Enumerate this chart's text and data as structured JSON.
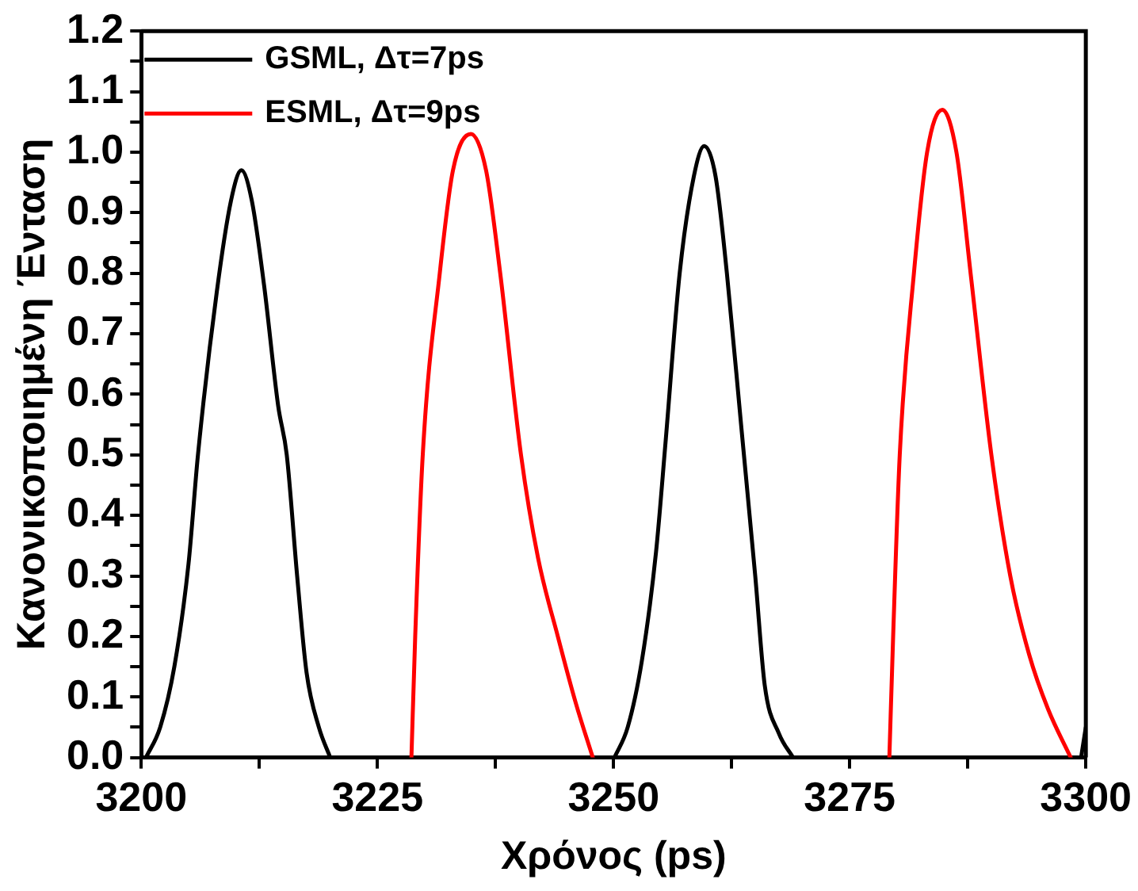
{
  "chart_data": {
    "type": "line",
    "xlabel": "Χρόνος (ps)",
    "ylabel": "Κανονικοποιημένη Ένταση",
    "xlim": [
      3200,
      3300
    ],
    "xticks": [
      3200,
      {
        "value": 3212.5,
        "label": null
      },
      3225,
      {
        "value": 3237.5,
        "label": null
      },
      3250,
      {
        "value": 3262.5,
        "label": null
      },
      3275,
      {
        "value": 3287.5,
        "label": null
      },
      3300
    ],
    "ylim": [
      0,
      1.2
    ],
    "yticks": [
      {
        "value": 0,
        "label": "0.0"
      },
      {
        "value": 0.05,
        "label": null
      },
      {
        "value": 0.1,
        "label": "0.1"
      },
      {
        "value": 0.15,
        "label": null
      },
      {
        "value": 0.2,
        "label": "0.2"
      },
      {
        "value": 0.25,
        "label": null
      },
      {
        "value": 0.3,
        "label": "0.3"
      },
      {
        "value": 0.35,
        "label": null
      },
      {
        "value": 0.4,
        "label": "0.4"
      },
      {
        "value": 0.45,
        "label": null
      },
      {
        "value": 0.5,
        "label": "0.5"
      },
      {
        "value": 0.55,
        "label": null
      },
      {
        "value": 0.6,
        "label": "0.6"
      },
      {
        "value": 0.65,
        "label": null
      },
      {
        "value": 0.7,
        "label": "0.7"
      },
      {
        "value": 0.75,
        "label": null
      },
      {
        "value": 0.8,
        "label": "0.8"
      },
      {
        "value": 0.85,
        "label": null
      },
      {
        "value": 0.9,
        "label": "0.9"
      },
      {
        "value": 0.95,
        "label": null
      },
      {
        "value": 1,
        "label": "1.0"
      },
      {
        "value": 1.05,
        "label": null
      },
      {
        "value": 1.1,
        "label": "1.1"
      },
      {
        "value": 1.15,
        "label": null
      },
      {
        "value": 1.2,
        "label": "1.2"
      }
    ],
    "grid": false,
    "legend": "top left",
    "marker": "none",
    "line_style": "solid",
    "series": [
      {
        "name": "GSML, Δτ=7ps",
        "color": "#000000",
        "x": [
          3200.5,
          3202,
          3203.5,
          3205,
          3206,
          3208,
          3209.5,
          3210.6,
          3211.7,
          3213,
          3214.5,
          3215.4,
          3216.5,
          3217.5,
          3218.8,
          3220,
          3235,
          3250.1,
          3251.5,
          3253,
          3254.5,
          3255.5,
          3257,
          3258.5,
          3259.6,
          3260.8,
          3262,
          3263.5,
          3265,
          3266,
          3267.5,
          3269,
          3285,
          3299.5,
          3300
        ],
        "values": [
          0,
          0.05,
          0.15,
          0.32,
          0.5,
          0.77,
          0.92,
          0.97,
          0.92,
          0.78,
          0.58,
          0.5,
          0.3,
          0.14,
          0.05,
          0,
          null,
          0,
          0.05,
          0.16,
          0.34,
          0.52,
          0.8,
          0.96,
          1.01,
          0.96,
          0.8,
          0.55,
          0.3,
          0.12,
          0.04,
          0,
          null,
          0,
          0.05
        ]
      },
      {
        "name": "ESML, Δτ=9ps",
        "color": "#ff0000",
        "x": [
          3228.6,
          3229,
          3229.8,
          3231.6,
          3233,
          3234.9,
          3236.5,
          3238,
          3240.2,
          3242,
          3244.1,
          3246,
          3247.8,
          3263,
          3279.2,
          3279.6,
          3280.3,
          3281.8,
          3283.2,
          3284.8,
          3286.3,
          3287.8,
          3290,
          3292,
          3294,
          3296,
          3298.4
        ],
        "values": [
          0,
          0.2,
          0.5,
          0.8,
          0.97,
          1.03,
          0.97,
          0.8,
          0.5,
          0.33,
          0.2,
          0.09,
          0,
          null,
          0,
          0.2,
          0.5,
          0.8,
          1,
          1.07,
          1,
          0.8,
          0.5,
          0.3,
          0.17,
          0.08,
          0
        ]
      }
    ]
  }
}
